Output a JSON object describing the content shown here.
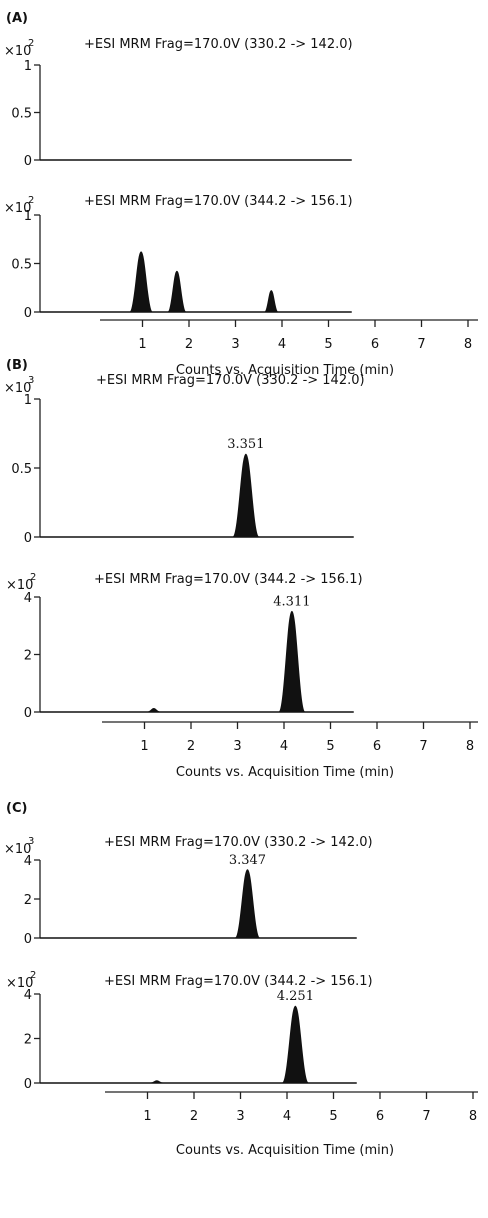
{
  "chart_data": [
    {
      "panel": "(A)",
      "type": "line",
      "scale_base": "×10",
      "scale_exp": "2",
      "title": "+ESI MRM Frag=170.0V (330.2 -> 142.0)",
      "yticks": [
        "1",
        "0.5",
        "0"
      ],
      "ylim": [
        0,
        1
      ],
      "xlim": [
        0,
        5.5
      ],
      "peaks": []
    },
    {
      "panel": "",
      "type": "line",
      "scale_base": "×10",
      "scale_exp": "2",
      "title": "+ESI MRM Frag=170.0V (344.2 -> 156.1)",
      "yticks": [
        "1",
        "0.5",
        "0"
      ],
      "ylim": [
        0,
        1
      ],
      "xlim": [
        0,
        5.5
      ],
      "peaks": [
        {
          "x": 0.97,
          "height": 0.62,
          "label": ""
        },
        {
          "x": 1.74,
          "height": 0.42,
          "label": ""
        },
        {
          "x": 3.77,
          "height": 0.22,
          "label": ""
        }
      ]
    },
    {
      "panel": "(B)",
      "type": "line",
      "scale_base": "×10",
      "scale_exp": "3",
      "title": "+ESI MRM Frag=170.0V (330.2 -> 142.0)",
      "yticks": [
        "1",
        "0.5",
        "0"
      ],
      "ylim": [
        0,
        1
      ],
      "xlim": [
        0,
        5.5
      ],
      "peaks": [
        {
          "x": 3.18,
          "height": 0.6,
          "label": "3.351"
        }
      ]
    },
    {
      "panel": "",
      "type": "line",
      "scale_base": "×10",
      "scale_exp": "2",
      "title": "+ESI MRM Frag=170.0V (344.2 -> 156.1)",
      "yticks": [
        "4",
        "2",
        "0"
      ],
      "ylim": [
        0,
        4
      ],
      "xlim": [
        0,
        5.5
      ],
      "peaks": [
        {
          "x": 4.17,
          "height": 3.5,
          "label": "4.311"
        },
        {
          "x": 1.2,
          "height": 0.12,
          "label": ""
        }
      ]
    },
    {
      "panel": "(C)",
      "type": "line",
      "scale_base": "×10",
      "scale_exp": "3",
      "title": "+ESI MRM Frag=170.0V (330.2 -> 142.0)",
      "yticks": [
        "4",
        "2",
        "0"
      ],
      "ylim": [
        0,
        4
      ],
      "xlim": [
        0,
        5.5
      ],
      "peaks": [
        {
          "x": 3.15,
          "height": 3.5,
          "label": "3.347"
        }
      ]
    },
    {
      "panel": "",
      "type": "line",
      "scale_base": "×10",
      "scale_exp": "2",
      "title": "+ESI MRM Frag=170.0V (344.2 -> 156.1)",
      "yticks": [
        "4",
        "2",
        "0"
      ],
      "ylim": [
        0,
        4
      ],
      "xlim": [
        0,
        5.5
      ],
      "peaks": [
        {
          "x": 4.18,
          "height": 3.45,
          "label": "4.251"
        },
        {
          "x": 1.2,
          "height": 0.1,
          "label": ""
        }
      ]
    }
  ],
  "shared_axes": [
    {
      "xticks": [
        "1",
        "2",
        "3",
        "4",
        "5",
        "6",
        "7",
        "8"
      ],
      "xlim": [
        0,
        8
      ],
      "xlabel": "Counts vs. Acquisition Time (min)"
    },
    {
      "xticks": [
        "1",
        "2",
        "3",
        "4",
        "5",
        "6",
        "7",
        "8"
      ],
      "xlim": [
        0,
        8
      ],
      "xlabel": "Counts vs. Acquisition Time (min)"
    },
    {
      "xticks": [
        "1",
        "2",
        "3",
        "4",
        "5",
        "6",
        "7",
        "8"
      ],
      "xlim": [
        0,
        8
      ],
      "xlabel": "Counts vs. Acquisition Time (min)"
    }
  ]
}
